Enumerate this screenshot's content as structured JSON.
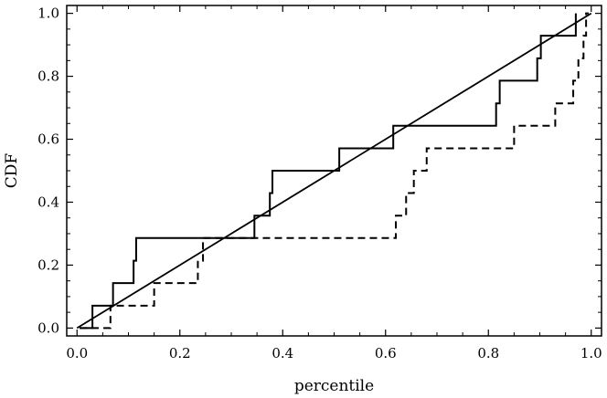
{
  "chart_data": {
    "type": "line",
    "title": "",
    "xlabel": "percentile",
    "ylabel": "CDF",
    "xlim": [
      -0.02,
      1.02
    ],
    "ylim": [
      -0.025,
      1.025
    ],
    "xticks": [
      0.0,
      0.2,
      0.4,
      0.6,
      0.8,
      1.0
    ],
    "xtick_labels": [
      "0.0",
      "0.2",
      "0.4",
      "0.6",
      "0.8",
      "1.0"
    ],
    "yticks": [
      0.0,
      0.2,
      0.4,
      0.6,
      0.8,
      1.0
    ],
    "ytick_labels": [
      "0.0",
      "0.2",
      "0.4",
      "0.6",
      "0.8",
      "1.0"
    ],
    "grid": false,
    "legend": "none",
    "series": [
      {
        "style": "solid",
        "color": "#000000",
        "x": [
          0.005,
          0.03,
          0.03,
          0.07,
          0.07,
          0.11,
          0.11,
          0.115,
          0.115,
          0.345,
          0.345,
          0.375,
          0.375,
          0.38,
          0.38,
          0.51,
          0.51,
          0.615,
          0.615,
          0.815,
          0.815,
          0.822,
          0.822,
          0.895,
          0.895,
          0.902,
          0.902,
          0.97,
          0.97
        ],
        "y": [
          0.0,
          0.0,
          0.071,
          0.071,
          0.143,
          0.143,
          0.214,
          0.214,
          0.286,
          0.286,
          0.357,
          0.357,
          0.429,
          0.429,
          0.5,
          0.5,
          0.571,
          0.571,
          0.643,
          0.643,
          0.714,
          0.714,
          0.786,
          0.786,
          0.857,
          0.857,
          0.929,
          0.929,
          1.0
        ]
      },
      {
        "style": "dashed",
        "color": "#000000",
        "x": [
          0.005,
          0.065,
          0.065,
          0.15,
          0.15,
          0.235,
          0.235,
          0.245,
          0.245,
          0.62,
          0.62,
          0.64,
          0.64,
          0.655,
          0.655,
          0.68,
          0.68,
          0.85,
          0.85,
          0.93,
          0.93,
          0.965,
          0.965,
          0.975,
          0.975,
          0.985,
          0.985,
          0.99,
          0.99,
          0.995,
          0.995
        ],
        "y": [
          0.0,
          0.0,
          0.071,
          0.071,
          0.143,
          0.143,
          0.214,
          0.214,
          0.286,
          0.286,
          0.357,
          0.357,
          0.429,
          0.429,
          0.5,
          0.5,
          0.571,
          0.571,
          0.643,
          0.643,
          0.714,
          0.714,
          0.786,
          0.786,
          0.857,
          0.857,
          0.929,
          0.929,
          1.0,
          1.0,
          1.0
        ]
      },
      {
        "style": "solid",
        "color": "#000000",
        "x": [
          0.0,
          1.0
        ],
        "y": [
          0.0,
          1.0
        ]
      }
    ]
  }
}
